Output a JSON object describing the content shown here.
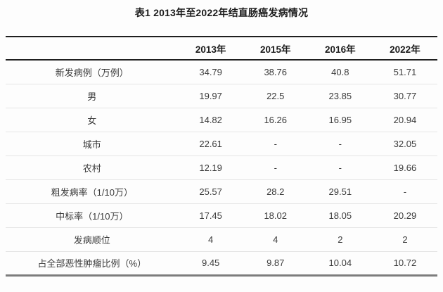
{
  "chart_data": {
    "type": "table",
    "title": "表1 2013年至2022年结直肠癌发病情况",
    "columns": [
      "",
      "2013年",
      "2015年",
      "2016年",
      "2022年"
    ],
    "rows": [
      {
        "label": "新发病例（万例）",
        "values": [
          "34.79",
          "38.76",
          "40.8",
          "51.71"
        ]
      },
      {
        "label": "男",
        "values": [
          "19.97",
          "22.5",
          "23.85",
          "30.77"
        ]
      },
      {
        "label": "女",
        "values": [
          "14.82",
          "16.26",
          "16.95",
          "20.94"
        ]
      },
      {
        "label": "城市",
        "values": [
          "22.61",
          "-",
          "-",
          "32.05"
        ]
      },
      {
        "label": "农村",
        "values": [
          "12.19",
          "-",
          "-",
          "19.66"
        ]
      },
      {
        "label": "粗发病率（1/10万）",
        "values": [
          "25.57",
          "28.2",
          "29.51",
          "-"
        ]
      },
      {
        "label": "中标率（1/10万）",
        "values": [
          "17.45",
          "18.02",
          "18.05",
          "20.29"
        ]
      },
      {
        "label": "发病顺位",
        "values": [
          "4",
          "4",
          "2",
          "2"
        ]
      },
      {
        "label": "占全部恶性肿瘤比例（%）",
        "values": [
          "9.45",
          "9.87",
          "10.04",
          "10.72"
        ]
      }
    ],
    "colors": {
      "border_dark": "#1f1f1f",
      "border_light": "#e5e5e5",
      "border_bottom": "#7d7d7d",
      "text": "#3a3a3a",
      "header_text": "#1c1c1c",
      "background": "#fdfdfd"
    },
    "layout": {
      "grid": "horizontal-rules-only",
      "header_style": "bold",
      "missing_value_marker": "-"
    }
  }
}
